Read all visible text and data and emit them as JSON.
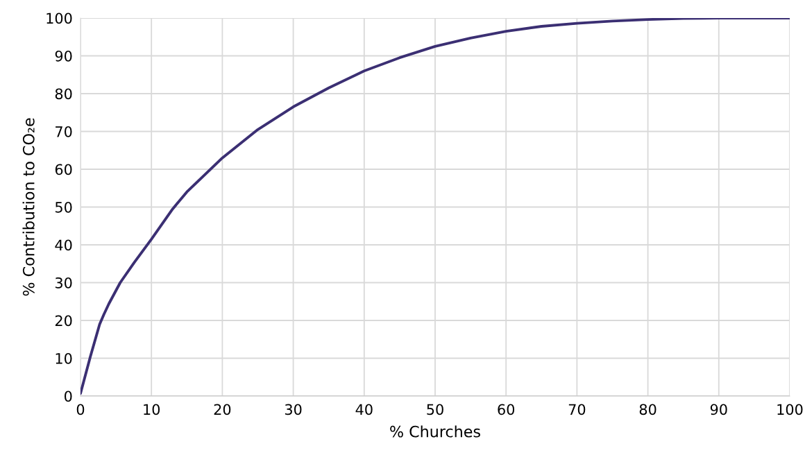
{
  "chart_data": {
    "type": "line",
    "xlabel": "% Churches",
    "ylabel": "% Contribution to CO₂e",
    "series": [
      {
        "color": "#3b2f73",
        "x": [
          0,
          1.4,
          2.7,
          3.3,
          4,
          5.6,
          7.6,
          10,
          13,
          15,
          20,
          25,
          30,
          35,
          40,
          45,
          50,
          55,
          60,
          65,
          70,
          75,
          80,
          85,
          90,
          100
        ],
        "values": [
          0.7,
          10.5,
          19,
          21.6,
          24.4,
          30,
          35.4,
          41.5,
          49.5,
          54,
          63,
          70.5,
          76.5,
          81.5,
          86,
          89.5,
          92.5,
          94.7,
          96.5,
          97.8,
          98.6,
          99.2,
          99.6,
          99.9,
          100,
          100
        ]
      }
    ],
    "xlim": [
      0,
      100
    ],
    "xticks": [
      0,
      10,
      20,
      30,
      40,
      50,
      60,
      70,
      80,
      90,
      100
    ],
    "ylim": [
      0,
      100
    ],
    "yticks": [
      0,
      10,
      20,
      30,
      40,
      50,
      60,
      70,
      80,
      90,
      100
    ],
    "grid": true,
    "marker": "none",
    "line_style": "solid"
  }
}
